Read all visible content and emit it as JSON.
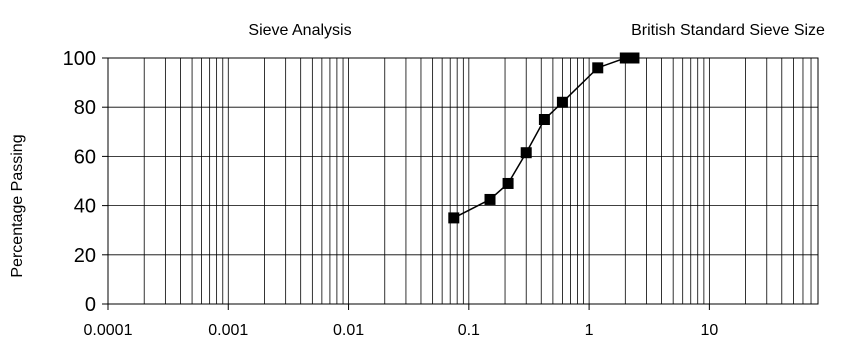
{
  "chart_data": {
    "type": "scatter",
    "title": "Sieve Analysis",
    "subtitle": "British Standard Sieve Size",
    "ylabel": "Percentage Passing",
    "xlabel": "",
    "x_scale": "log",
    "xlim": [
      0.0001,
      80
    ],
    "ylim": [
      0,
      100
    ],
    "x_ticks": [
      "0.0001",
      "0.001",
      "0.01",
      "0.1",
      "1",
      "10"
    ],
    "y_ticks": [
      "0",
      "20",
      "40",
      "60",
      "80",
      "100"
    ],
    "grid": true,
    "series": [
      {
        "x": [
          0.075,
          0.15,
          0.212,
          0.3,
          0.425,
          0.6,
          1.18,
          2.0,
          2.36
        ],
        "y": [
          35,
          42.5,
          49,
          61.5,
          75,
          82,
          96,
          100,
          100
        ],
        "marker": "square",
        "line": true,
        "color": "#000000"
      }
    ]
  }
}
